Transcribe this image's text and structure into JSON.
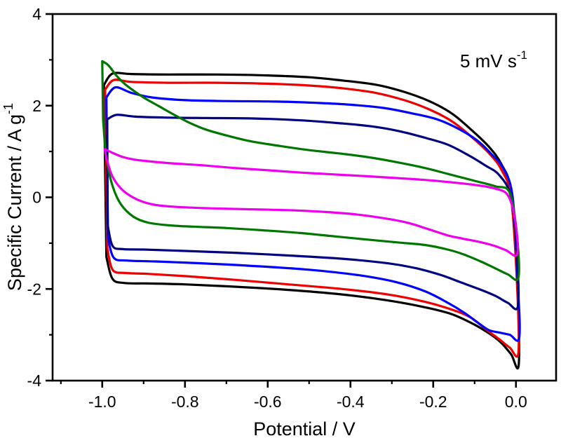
{
  "chart_data": {
    "type": "line",
    "title": "",
    "xlabel": "Potential / V",
    "ylabel_base": "Specific Current / A g",
    "ylabel_sup": "-1",
    "annotation_base": "5 mV s",
    "annotation_sup": "-1",
    "xlim": [
      -1.12,
      0.097
    ],
    "ylim": [
      -4,
      4
    ],
    "x_major_ticks": [
      -1.0,
      -0.8,
      -0.6,
      -0.4,
      -0.2,
      0.0
    ],
    "x_tick_labels": [
      "-1.0",
      "-0.8",
      "-0.6",
      "-0.4",
      "-0.2",
      "0.0"
    ],
    "x_minor_ticks": [
      -1.1,
      -0.9,
      -0.7,
      -0.5,
      -0.3,
      -0.1
    ],
    "y_major_ticks": [
      -4,
      -2,
      0,
      2,
      4
    ],
    "y_tick_labels": [
      "-4",
      "-2",
      "0",
      "2",
      "4"
    ],
    "y_minor_ticks": [
      -3,
      -1,
      1,
      3
    ],
    "grid": false,
    "legend": "none",
    "frame": "box",
    "series": [
      {
        "name": "black",
        "color": "#000000",
        "loop_points": [
          [
            -0.996,
            2.45
          ],
          [
            -0.975,
            2.7
          ],
          [
            -0.93,
            2.69
          ],
          [
            -0.84,
            2.68
          ],
          [
            -0.72,
            2.68
          ],
          [
            -0.6,
            2.66
          ],
          [
            -0.5,
            2.62
          ],
          [
            -0.42,
            2.55
          ],
          [
            -0.34,
            2.46
          ],
          [
            -0.27,
            2.3
          ],
          [
            -0.21,
            2.1
          ],
          [
            -0.155,
            1.83
          ],
          [
            -0.105,
            1.45
          ],
          [
            -0.065,
            1.1
          ],
          [
            -0.035,
            0.72
          ],
          [
            -0.012,
            0.15
          ],
          [
            0.002,
            -1.5
          ],
          [
            0.007,
            -3.62
          ],
          [
            -0.012,
            -3.42
          ],
          [
            -0.035,
            -3.18
          ],
          [
            -0.06,
            -3.0
          ],
          [
            -0.1,
            -2.78
          ],
          [
            -0.155,
            -2.55
          ],
          [
            -0.22,
            -2.4
          ],
          [
            -0.31,
            -2.25
          ],
          [
            -0.42,
            -2.12
          ],
          [
            -0.55,
            -2.02
          ],
          [
            -0.68,
            -1.95
          ],
          [
            -0.8,
            -1.9
          ],
          [
            -0.89,
            -1.88
          ],
          [
            -0.945,
            -1.87
          ],
          [
            -0.975,
            -1.78
          ],
          [
            -0.99,
            -1.3
          ]
        ]
      },
      {
        "name": "red",
        "color": "#ee0000",
        "loop_points": [
          [
            -0.993,
            2.35
          ],
          [
            -0.972,
            2.56
          ],
          [
            -0.93,
            2.52
          ],
          [
            -0.84,
            2.5
          ],
          [
            -0.72,
            2.5
          ],
          [
            -0.6,
            2.48
          ],
          [
            -0.5,
            2.44
          ],
          [
            -0.42,
            2.38
          ],
          [
            -0.34,
            2.28
          ],
          [
            -0.27,
            2.12
          ],
          [
            -0.21,
            1.92
          ],
          [
            -0.155,
            1.66
          ],
          [
            -0.105,
            1.3
          ],
          [
            -0.065,
            0.96
          ],
          [
            -0.035,
            0.6
          ],
          [
            -0.012,
            0.0
          ],
          [
            0.002,
            -1.8
          ],
          [
            0.006,
            -3.38
          ],
          [
            -0.015,
            -3.28
          ],
          [
            -0.04,
            -3.1
          ],
          [
            -0.07,
            -2.9
          ],
          [
            -0.11,
            -2.62
          ],
          [
            -0.155,
            -2.45
          ],
          [
            -0.22,
            -2.28
          ],
          [
            -0.31,
            -2.12
          ],
          [
            -0.42,
            -2.0
          ],
          [
            -0.55,
            -1.9
          ],
          [
            -0.68,
            -1.8
          ],
          [
            -0.8,
            -1.72
          ],
          [
            -0.89,
            -1.67
          ],
          [
            -0.945,
            -1.65
          ],
          [
            -0.975,
            -1.58
          ],
          [
            -0.988,
            -1.1
          ]
        ]
      },
      {
        "name": "blue",
        "color": "#0000ff",
        "loop_points": [
          [
            -0.99,
            2.18
          ],
          [
            -0.968,
            2.4
          ],
          [
            -0.93,
            2.28
          ],
          [
            -0.88,
            2.18
          ],
          [
            -0.8,
            2.12
          ],
          [
            -0.7,
            2.1
          ],
          [
            -0.58,
            2.09
          ],
          [
            -0.48,
            2.06
          ],
          [
            -0.4,
            2.02
          ],
          [
            -0.32,
            1.95
          ],
          [
            -0.25,
            1.83
          ],
          [
            -0.19,
            1.7
          ],
          [
            -0.14,
            1.5
          ],
          [
            -0.095,
            1.25
          ],
          [
            -0.06,
            0.95
          ],
          [
            -0.03,
            0.62
          ],
          [
            -0.008,
            0.0
          ],
          [
            0.004,
            -1.8
          ],
          [
            0.008,
            -3.05
          ],
          [
            -0.015,
            -3.0
          ],
          [
            -0.04,
            -2.95
          ],
          [
            -0.065,
            -2.9
          ],
          [
            -0.09,
            -2.75
          ],
          [
            -0.125,
            -2.52
          ],
          [
            -0.165,
            -2.3
          ],
          [
            -0.22,
            -2.05
          ],
          [
            -0.29,
            -1.85
          ],
          [
            -0.38,
            -1.7
          ],
          [
            -0.5,
            -1.58
          ],
          [
            -0.63,
            -1.5
          ],
          [
            -0.76,
            -1.44
          ],
          [
            -0.87,
            -1.4
          ],
          [
            -0.94,
            -1.38
          ],
          [
            -0.972,
            -1.32
          ],
          [
            -0.986,
            -0.9
          ]
        ]
      },
      {
        "name": "navy",
        "color": "#000080",
        "loop_points": [
          [
            -0.988,
            1.7
          ],
          [
            -0.965,
            1.8
          ],
          [
            -0.92,
            1.76
          ],
          [
            -0.85,
            1.74
          ],
          [
            -0.75,
            1.73
          ],
          [
            -0.63,
            1.72
          ],
          [
            -0.52,
            1.68
          ],
          [
            -0.43,
            1.62
          ],
          [
            -0.35,
            1.55
          ],
          [
            -0.28,
            1.44
          ],
          [
            -0.22,
            1.3
          ],
          [
            -0.165,
            1.15
          ],
          [
            -0.115,
            0.92
          ],
          [
            -0.075,
            0.7
          ],
          [
            -0.04,
            0.48
          ],
          [
            -0.012,
            0.0
          ],
          [
            0.002,
            -1.2
          ],
          [
            0.005,
            -2.37
          ],
          [
            -0.02,
            -2.3
          ],
          [
            -0.05,
            -2.15
          ],
          [
            -0.09,
            -2.0
          ],
          [
            -0.135,
            -1.85
          ],
          [
            -0.18,
            -1.7
          ],
          [
            -0.24,
            -1.55
          ],
          [
            -0.31,
            -1.44
          ],
          [
            -0.42,
            -1.34
          ],
          [
            -0.55,
            -1.27
          ],
          [
            -0.68,
            -1.21
          ],
          [
            -0.8,
            -1.17
          ],
          [
            -0.9,
            -1.14
          ],
          [
            -0.95,
            -1.13
          ],
          [
            -0.975,
            -1.06
          ],
          [
            -0.987,
            -0.6
          ]
        ]
      },
      {
        "name": "green",
        "color": "#007700",
        "loop_points": [
          [
            -1.0,
            2.97
          ],
          [
            -0.985,
            2.88
          ],
          [
            -0.965,
            2.65
          ],
          [
            -0.945,
            2.47
          ],
          [
            -0.92,
            2.3
          ],
          [
            -0.895,
            2.15
          ],
          [
            -0.865,
            2.0
          ],
          [
            -0.83,
            1.82
          ],
          [
            -0.79,
            1.63
          ],
          [
            -0.75,
            1.48
          ],
          [
            -0.7,
            1.35
          ],
          [
            -0.64,
            1.22
          ],
          [
            -0.57,
            1.12
          ],
          [
            -0.5,
            1.03
          ],
          [
            -0.43,
            0.96
          ],
          [
            -0.36,
            0.88
          ],
          [
            -0.29,
            0.77
          ],
          [
            -0.22,
            0.64
          ],
          [
            -0.16,
            0.5
          ],
          [
            -0.1,
            0.36
          ],
          [
            -0.05,
            0.24
          ],
          [
            -0.015,
            0.1
          ],
          [
            0.002,
            -0.8
          ],
          [
            0.006,
            -1.75
          ],
          [
            -0.02,
            -1.68
          ],
          [
            -0.05,
            -1.55
          ],
          [
            -0.085,
            -1.4
          ],
          [
            -0.125,
            -1.25
          ],
          [
            -0.165,
            -1.14
          ],
          [
            -0.22,
            -1.04
          ],
          [
            -0.28,
            -0.99
          ],
          [
            -0.35,
            -0.93
          ],
          [
            -0.43,
            -0.86
          ],
          [
            -0.52,
            -0.78
          ],
          [
            -0.61,
            -0.72
          ],
          [
            -0.7,
            -0.67
          ],
          [
            -0.78,
            -0.64
          ],
          [
            -0.84,
            -0.61
          ],
          [
            -0.89,
            -0.55
          ],
          [
            -0.925,
            -0.42
          ],
          [
            -0.955,
            -0.15
          ],
          [
            -0.975,
            0.25
          ],
          [
            -0.99,
            0.85
          ],
          [
            -0.998,
            1.7
          ]
        ]
      },
      {
        "name": "magenta",
        "color": "#ee00ee",
        "loop_points": [
          [
            -0.994,
            1.05
          ],
          [
            -0.975,
            0.97
          ],
          [
            -0.95,
            0.88
          ],
          [
            -0.92,
            0.82
          ],
          [
            -0.88,
            0.78
          ],
          [
            -0.83,
            0.74
          ],
          [
            -0.76,
            0.7
          ],
          [
            -0.68,
            0.64
          ],
          [
            -0.6,
            0.59
          ],
          [
            -0.52,
            0.54
          ],
          [
            -0.44,
            0.5
          ],
          [
            -0.36,
            0.46
          ],
          [
            -0.29,
            0.42
          ],
          [
            -0.22,
            0.38
          ],
          [
            -0.16,
            0.33
          ],
          [
            -0.1,
            0.27
          ],
          [
            -0.055,
            0.2
          ],
          [
            -0.02,
            0.05
          ],
          [
            -0.002,
            -0.5
          ],
          [
            0.003,
            -1.24
          ],
          [
            -0.025,
            -1.15
          ],
          [
            -0.055,
            -1.05
          ],
          [
            -0.09,
            -0.97
          ],
          [
            -0.13,
            -0.9
          ],
          [
            -0.165,
            -0.83
          ],
          [
            -0.21,
            -0.7
          ],
          [
            -0.26,
            -0.56
          ],
          [
            -0.31,
            -0.47
          ],
          [
            -0.38,
            -0.38
          ],
          [
            -0.46,
            -0.32
          ],
          [
            -0.55,
            -0.28
          ],
          [
            -0.65,
            -0.26
          ],
          [
            -0.74,
            -0.24
          ],
          [
            -0.82,
            -0.21
          ],
          [
            -0.875,
            -0.16
          ],
          [
            -0.915,
            -0.05
          ],
          [
            -0.95,
            0.15
          ],
          [
            -0.975,
            0.45
          ],
          [
            -0.99,
            0.85
          ]
        ]
      }
    ]
  }
}
